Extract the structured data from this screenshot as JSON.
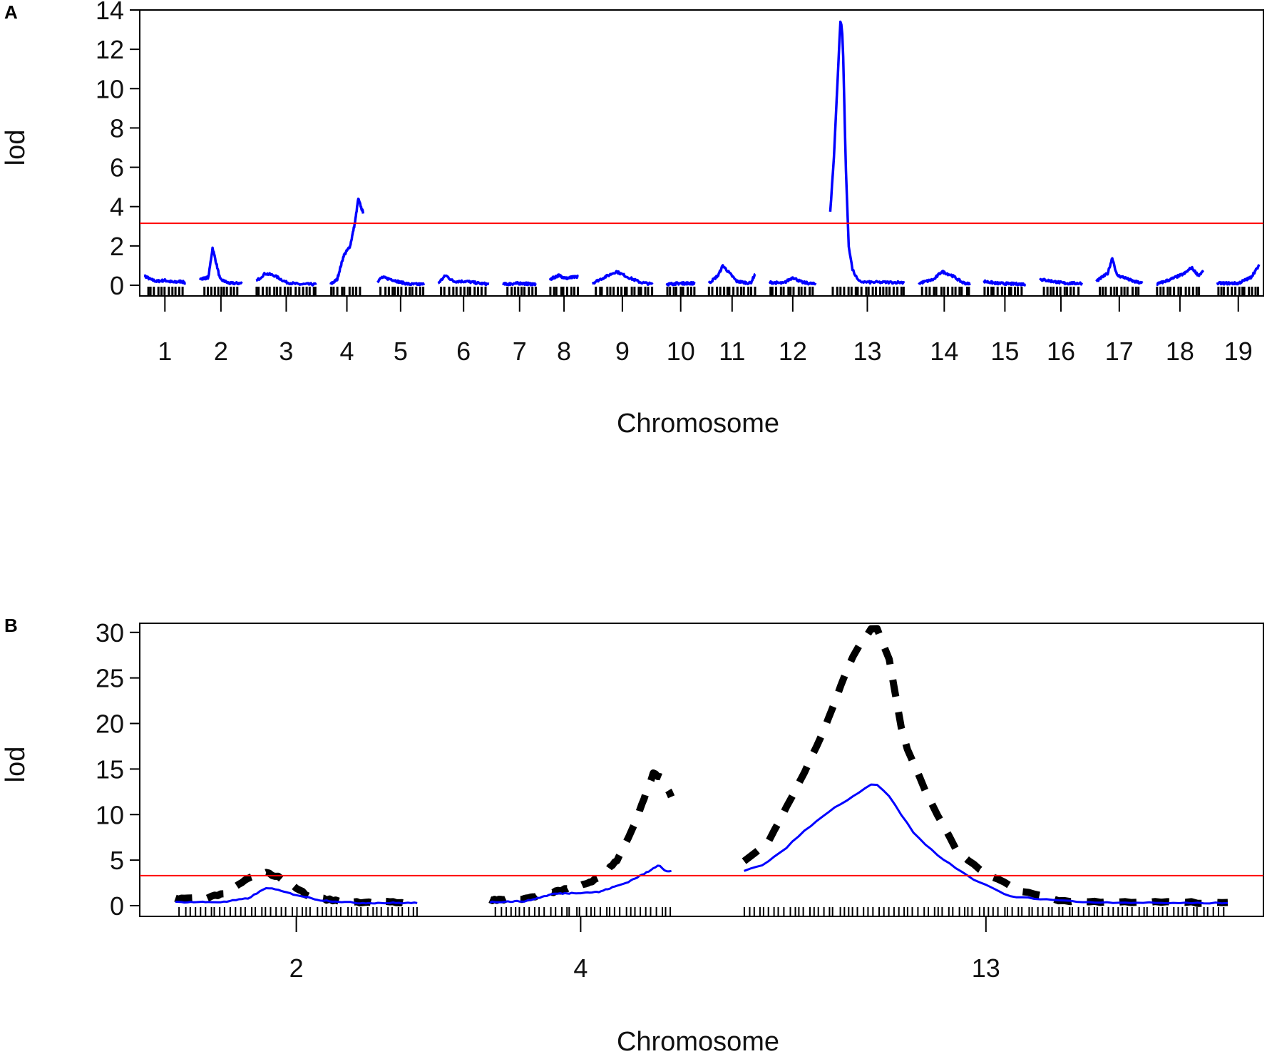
{
  "chart_data": [
    {
      "panel_label": "A",
      "type": "line",
      "xlabel": "Chromosome",
      "ylabel": "lod",
      "ylim": [
        0,
        14
      ],
      "yticks": [
        0,
        2,
        4,
        6,
        8,
        10,
        12,
        14
      ],
      "threshold": 3.15,
      "threshold_color": "#ff0000",
      "line_color": "#0000ff",
      "rug_color": "#000000",
      "grid": false,
      "legend": "none",
      "chromosomes": [
        {
          "label": "1",
          "len": 0.9,
          "profile": [
            [
              0,
              0.5
            ],
            [
              0.15,
              0.3
            ],
            [
              0.3,
              0.2
            ],
            [
              0.5,
              0.25
            ],
            [
              0.7,
              0.15
            ],
            [
              0.9,
              0.2
            ],
            [
              1,
              0.1
            ]
          ]
        },
        {
          "label": "2",
          "len": 0.9,
          "profile": [
            [
              0,
              0.3
            ],
            [
              0.2,
              0.4
            ],
            [
              0.3,
              1.9
            ],
            [
              0.38,
              1.2
            ],
            [
              0.48,
              0.3
            ],
            [
              0.7,
              0.1
            ],
            [
              1,
              0.1
            ]
          ]
        },
        {
          "label": "3",
          "len": 1.3,
          "profile": [
            [
              0,
              0.2
            ],
            [
              0.15,
              0.6
            ],
            [
              0.3,
              0.5
            ],
            [
              0.5,
              0.15
            ],
            [
              0.7,
              0.05
            ],
            [
              1,
              0.05
            ]
          ]
        },
        {
          "label": "4",
          "len": 0.7,
          "profile": [
            [
              0,
              0.05
            ],
            [
              0.2,
              0.3
            ],
            [
              0.4,
              1.5
            ],
            [
              0.6,
              2.0
            ],
            [
              0.75,
              3.2
            ],
            [
              0.85,
              4.4
            ],
            [
              0.95,
              3.9
            ],
            [
              1,
              3.7
            ]
          ]
        },
        {
          "label": "5",
          "len": 1.0,
          "profile": [
            [
              0,
              0.2
            ],
            [
              0.1,
              0.4
            ],
            [
              0.3,
              0.3
            ],
            [
              0.5,
              0.15
            ],
            [
              0.7,
              0.05
            ],
            [
              1,
              0.05
            ]
          ]
        },
        {
          "label": "6",
          "len": 1.1,
          "profile": [
            [
              0,
              0.1
            ],
            [
              0.15,
              0.5
            ],
            [
              0.3,
              0.2
            ],
            [
              0.55,
              0.2
            ],
            [
              0.8,
              0.1
            ],
            [
              1,
              0.05
            ]
          ]
        },
        {
          "label": "7",
          "len": 0.7,
          "profile": [
            [
              0,
              0.05
            ],
            [
              0.5,
              0.1
            ],
            [
              1,
              0.05
            ]
          ]
        },
        {
          "label": "8",
          "len": 0.6,
          "profile": [
            [
              0,
              0.3
            ],
            [
              0.3,
              0.5
            ],
            [
              0.6,
              0.35
            ],
            [
              1,
              0.45
            ]
          ]
        },
        {
          "label": "9",
          "len": 1.3,
          "profile": [
            [
              0,
              0.1
            ],
            [
              0.2,
              0.4
            ],
            [
              0.4,
              0.7
            ],
            [
              0.6,
              0.4
            ],
            [
              0.8,
              0.15
            ],
            [
              1,
              0.05
            ]
          ]
        },
        {
          "label": "10",
          "len": 0.6,
          "profile": [
            [
              0,
              0.05
            ],
            [
              0.5,
              0.1
            ],
            [
              1,
              0.1
            ]
          ]
        },
        {
          "label": "11",
          "len": 1.0,
          "profile": [
            [
              0,
              0.1
            ],
            [
              0.2,
              0.5
            ],
            [
              0.3,
              1.0
            ],
            [
              0.45,
              0.6
            ],
            [
              0.6,
              0.2
            ],
            [
              0.9,
              0.1
            ],
            [
              1,
              0.6
            ]
          ]
        },
        {
          "label": "12",
          "len": 1.0,
          "profile": [
            [
              0,
              0.15
            ],
            [
              0.3,
              0.1
            ],
            [
              0.5,
              0.4
            ],
            [
              0.7,
              0.15
            ],
            [
              1,
              0.05
            ]
          ]
        },
        {
          "label": "13",
          "len": 1.6,
          "profile": [
            [
              0,
              3.7
            ],
            [
              0.05,
              6.5
            ],
            [
              0.1,
              10.5
            ],
            [
              0.14,
              13.6
            ],
            [
              0.17,
              12.5
            ],
            [
              0.21,
              6.0
            ],
            [
              0.25,
              2.0
            ],
            [
              0.3,
              0.8
            ],
            [
              0.38,
              0.2
            ],
            [
              0.5,
              0.15
            ],
            [
              1,
              0.15
            ]
          ]
        },
        {
          "label": "14",
          "len": 1.1,
          "profile": [
            [
              0,
              0.1
            ],
            [
              0.3,
              0.3
            ],
            [
              0.45,
              0.7
            ],
            [
              0.65,
              0.5
            ],
            [
              0.85,
              0.15
            ],
            [
              1,
              0.05
            ]
          ]
        },
        {
          "label": "15",
          "len": 0.9,
          "profile": [
            [
              0,
              0.2
            ],
            [
              0.3,
              0.1
            ],
            [
              1,
              0.05
            ]
          ]
        },
        {
          "label": "16",
          "len": 0.9,
          "profile": [
            [
              0,
              0.3
            ],
            [
              0.3,
              0.2
            ],
            [
              0.6,
              0.1
            ],
            [
              1,
              0.1
            ]
          ]
        },
        {
          "label": "17",
          "len": 1.0,
          "profile": [
            [
              0,
              0.2
            ],
            [
              0.25,
              0.6
            ],
            [
              0.35,
              1.4
            ],
            [
              0.45,
              0.5
            ],
            [
              0.6,
              0.4
            ],
            [
              0.8,
              0.2
            ],
            [
              1,
              0.1
            ]
          ]
        },
        {
          "label": "18",
          "len": 1.0,
          "profile": [
            [
              0,
              0.05
            ],
            [
              0.3,
              0.3
            ],
            [
              0.6,
              0.6
            ],
            [
              0.75,
              0.9
            ],
            [
              0.9,
              0.5
            ],
            [
              1,
              0.7
            ]
          ]
        },
        {
          "label": "19",
          "len": 0.9,
          "profile": [
            [
              0,
              0.1
            ],
            [
              0.5,
              0.1
            ],
            [
              0.8,
              0.4
            ],
            [
              1,
              1.0
            ]
          ]
        }
      ]
    },
    {
      "panel_label": "B",
      "type": "line",
      "xlabel": "Chromosome",
      "ylabel": "lod",
      "ylim": [
        0,
        31
      ],
      "yticks": [
        0,
        5,
        10,
        15,
        20,
        25,
        30
      ],
      "threshold": 3.3,
      "threshold_color": "#ff0000",
      "grid": false,
      "legend": "none",
      "series": [
        {
          "style": "solid",
          "color": "#0000ff"
        },
        {
          "style": "dashed",
          "color": "#000000"
        }
      ],
      "chromosomes": [
        {
          "label": "2",
          "len": 1.0,
          "solid": [
            [
              0,
              0.4
            ],
            [
              0.2,
              0.4
            ],
            [
              0.3,
              0.8
            ],
            [
              0.38,
              2.0
            ],
            [
              0.48,
              1.3
            ],
            [
              0.6,
              0.6
            ],
            [
              0.75,
              0.3
            ],
            [
              1,
              0.3
            ]
          ],
          "dashed": [
            [
              0,
              0.8
            ],
            [
              0.12,
              0.8
            ],
            [
              0.22,
              1.5
            ],
            [
              0.3,
              3.0
            ],
            [
              0.38,
              3.6
            ],
            [
              0.46,
              2.8
            ],
            [
              0.55,
              1.0
            ],
            [
              0.7,
              0.4
            ],
            [
              0.85,
              0.4
            ],
            [
              1,
              0.3
            ]
          ]
        },
        {
          "label": "4",
          "len": 0.75,
          "solid": [
            [
              0,
              0.4
            ],
            [
              0.2,
              0.5
            ],
            [
              0.35,
              1.3
            ],
            [
              0.6,
              1.5
            ],
            [
              0.75,
              2.5
            ],
            [
              0.88,
              3.8
            ],
            [
              0.93,
              4.5
            ],
            [
              0.97,
              3.8
            ],
            [
              1,
              3.8
            ]
          ],
          "dashed": [
            [
              0,
              0.6
            ],
            [
              0.2,
              0.8
            ],
            [
              0.35,
              1.5
            ],
            [
              0.5,
              2.2
            ],
            [
              0.6,
              3.0
            ],
            [
              0.7,
              5.0
            ],
            [
              0.8,
              9.0
            ],
            [
              0.9,
              14.5
            ],
            [
              0.95,
              14.0
            ],
            [
              1,
              12.0
            ]
          ]
        },
        {
          "label": "13",
          "len": 2.0,
          "solid": [
            [
              0,
              3.8
            ],
            [
              0.04,
              4.5
            ],
            [
              0.08,
              6.0
            ],
            [
              0.12,
              8.0
            ],
            [
              0.18,
              10.5
            ],
            [
              0.24,
              12.5
            ],
            [
              0.27,
              13.5
            ],
            [
              0.3,
              12.0
            ],
            [
              0.35,
              8.0
            ],
            [
              0.4,
              5.5
            ],
            [
              0.47,
              3.0
            ],
            [
              0.55,
              1.0
            ],
            [
              0.7,
              0.4
            ],
            [
              0.85,
              0.3
            ],
            [
              1,
              0.3
            ]
          ],
          "dashed": [
            [
              0,
              4.8
            ],
            [
              0.05,
              7.0
            ],
            [
              0.1,
              12.0
            ],
            [
              0.16,
              18.5
            ],
            [
              0.22,
              27.0
            ],
            [
              0.27,
              31.0
            ],
            [
              0.3,
              27.0
            ],
            [
              0.33,
              18.0
            ],
            [
              0.38,
              12.0
            ],
            [
              0.44,
              6.0
            ],
            [
              0.5,
              3.5
            ],
            [
              0.58,
              1.5
            ],
            [
              0.65,
              0.5
            ],
            [
              0.8,
              0.4
            ],
            [
              1,
              0.3
            ]
          ]
        }
      ]
    }
  ]
}
